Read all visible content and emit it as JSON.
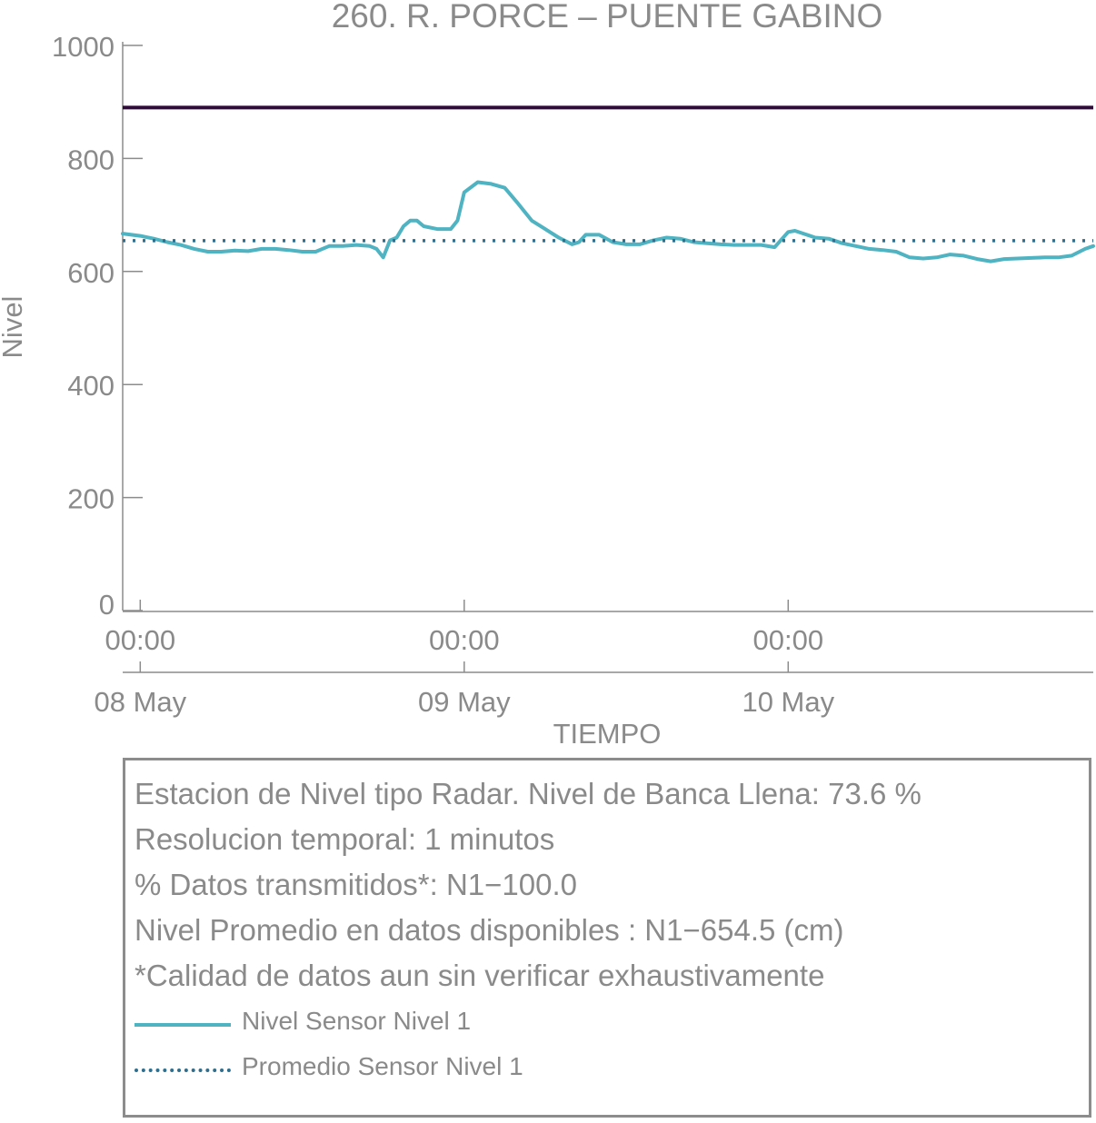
{
  "chart_data": {
    "type": "line",
    "title": "260. R. PORCE – PUENTE GABINO",
    "xlabel": "TIEMPO",
    "ylabel": "Nivel",
    "ylim": [
      0,
      1000
    ],
    "yticks": [
      0,
      200,
      400,
      600,
      800,
      1000
    ],
    "xlim_hours": [
      -1.3,
      70.6
    ],
    "xtick_labels": [
      "00:00",
      "00:00",
      "00:00"
    ],
    "date_labels": [
      "08 May",
      "09 May",
      "10 May"
    ],
    "grid": false,
    "reference_lines": [
      {
        "value": 890,
        "color": "#300a3c",
        "style": "solid"
      }
    ],
    "series": [
      {
        "name": "Nivel Sensor Nivel 1",
        "color": "#4fb3c2",
        "style": "solid",
        "x_hours": [
          -1.3,
          0,
          1,
          2,
          3,
          4,
          5,
          6,
          7,
          8,
          9,
          10,
          11,
          12,
          13,
          14,
          15,
          16,
          17,
          17.5,
          18,
          18.5,
          19,
          19.5,
          20,
          20.5,
          21,
          22,
          23,
          23.5,
          24,
          25,
          26,
          27,
          28,
          29,
          30,
          31,
          32,
          32.5,
          33,
          34,
          35,
          36,
          37,
          38,
          39,
          40,
          41,
          42,
          43,
          44,
          45,
          46,
          47,
          48,
          48.5,
          49,
          50,
          51,
          52,
          53,
          54,
          55,
          56,
          57,
          58,
          59,
          60,
          61,
          62,
          63,
          64,
          65,
          66,
          67,
          68,
          69,
          70,
          70.6
        ],
        "values": [
          667,
          663,
          658,
          652,
          647,
          640,
          635,
          635,
          637,
          636,
          640,
          640,
          638,
          635,
          635,
          645,
          645,
          647,
          645,
          640,
          625,
          655,
          660,
          680,
          690,
          690,
          680,
          675,
          675,
          690,
          740,
          758,
          755,
          748,
          720,
          690,
          675,
          660,
          648,
          652,
          665,
          665,
          652,
          648,
          648,
          655,
          660,
          658,
          652,
          650,
          648,
          647,
          647,
          647,
          643,
          670,
          672,
          668,
          660,
          658,
          650,
          645,
          640,
          638,
          635,
          625,
          623,
          625,
          630,
          628,
          622,
          618,
          622,
          623,
          624,
          625,
          625,
          628,
          640,
          645
        ]
      },
      {
        "name": "Promedio Sensor Nivel 1",
        "color": "#2e6e8e",
        "style": "dotted",
        "constant": 654.5
      }
    ]
  },
  "info_box": {
    "lines": [
      "Estacion de Nivel tipo Radar. Nivel de Banca Llena: 73.6 %",
      "Resolucion temporal: 1 minutos",
      "% Datos transmitidos*: N1−100.0",
      "Nivel Promedio en datos disponibles : N1−654.5 (cm)",
      "*Calidad de datos aun sin verificar exhaustivamente"
    ],
    "legend": [
      {
        "label": "Nivel Sensor Nivel 1",
        "color": "#4fb3c2",
        "style": "solid"
      },
      {
        "label": "Promedio Sensor Nivel 1",
        "color": "#2e6e8e",
        "style": "dotted"
      }
    ]
  }
}
